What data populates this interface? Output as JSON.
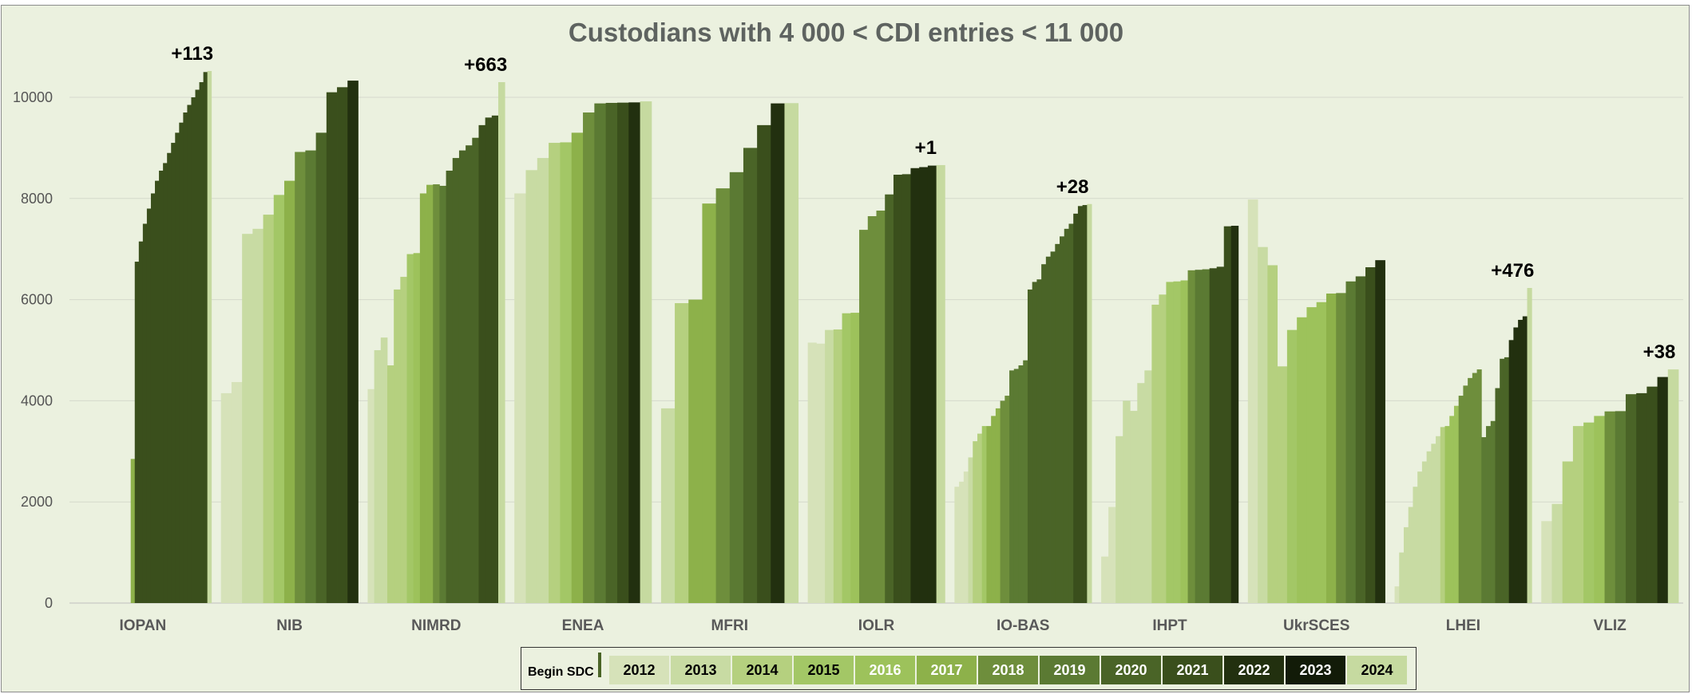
{
  "title": "Custodians with 4 000 < CDI entries < 11 000",
  "legend": {
    "title": "Begin SDC",
    "years": [
      {
        "label": "2012",
        "color": "#d6e2b9",
        "text_color": "#000000"
      },
      {
        "label": "2013",
        "color": "#c8dba3",
        "text_color": "#000000"
      },
      {
        "label": "2014",
        "color": "#b5d07f",
        "text_color": "#000000"
      },
      {
        "label": "2015",
        "color": "#a3c766",
        "text_color": "#000000"
      },
      {
        "label": "2016",
        "color": "#9dc25b",
        "text_color": "#ffffff"
      },
      {
        "label": "2017",
        "color": "#8db14a",
        "text_color": "#ffffff"
      },
      {
        "label": "2018",
        "color": "#6e8e3c",
        "text_color": "#ffffff"
      },
      {
        "label": "2019",
        "color": "#5b7a33",
        "text_color": "#ffffff"
      },
      {
        "label": "2020",
        "color": "#4a6427",
        "text_color": "#ffffff"
      },
      {
        "label": "2021",
        "color": "#3a4f1c",
        "text_color": "#ffffff"
      },
      {
        "label": "2022",
        "color": "#22300f",
        "text_color": "#ffffff"
      },
      {
        "label": "2023",
        "color": "#121b08",
        "text_color": "#ffffff"
      },
      {
        "label": "2024",
        "color": "#c6daa0",
        "text_color": "#000000"
      }
    ]
  },
  "chart_data": {
    "type": "bar",
    "title": "Custodians with 4 000 < CDI entries < 11 000",
    "xlabel": "",
    "ylabel": "",
    "ylim": [
      0,
      11000
    ],
    "yticks": [
      "0",
      "2000",
      "4000",
      "6000",
      "8000",
      "10000"
    ],
    "grid": true,
    "legend_position": "bottom",
    "categories": [
      "IOPAN",
      "NIB",
      "NIMRD",
      "ENEA",
      "MFRI",
      "IOLR",
      "IO-BAS",
      "IHPT",
      "UkrSCES",
      "LHEI",
      "VLIZ"
    ],
    "annotations": {
      "IOPAN": "+113",
      "NIMRD": "+663",
      "IOLR": "+1",
      "IO-BAS": "+28",
      "LHEI": "+476",
      "VLIZ": "+38"
    },
    "series": [
      {
        "category": "IOPAN",
        "segments": [
          {
            "year": "2017",
            "values": [
              0,
              0,
              0,
              0,
              0,
              0,
              0,
              0,
              0,
              0,
              0,
              0,
              0,
              0,
              2850
            ]
          },
          {
            "year": "2021",
            "values": [
              6750,
              7150,
              7500,
              7800,
              8100,
              8350,
              8550,
              8700,
              8900,
              9100,
              9300,
              9500,
              9700,
              9850,
              10000,
              10150,
              10300,
              10500
            ]
          },
          {
            "year": "2024",
            "values": [
              10520
            ]
          }
        ]
      },
      {
        "category": "NIB",
        "segments": [
          {
            "year": "2012",
            "values": [
              4150,
              4370
            ]
          },
          {
            "year": "2013",
            "values": [
              7300,
              7400
            ]
          },
          {
            "year": "2014",
            "values": [
              7680
            ]
          },
          {
            "year": "2015",
            "values": [
              8070
            ]
          },
          {
            "year": "2017",
            "values": [
              8350
            ]
          },
          {
            "year": "2018",
            "values": [
              8920
            ]
          },
          {
            "year": "2019",
            "values": [
              8950
            ]
          },
          {
            "year": "2020",
            "values": [
              9300
            ]
          },
          {
            "year": "2021",
            "values": [
              10100,
              10200
            ]
          },
          {
            "year": "2022",
            "values": [
              10330
            ]
          }
        ]
      },
      {
        "category": "NIMRD",
        "segments": [
          {
            "year": "2012",
            "values": [
              4230
            ]
          },
          {
            "year": "2013",
            "values": [
              5000,
              5250
            ]
          },
          {
            "year": "2014",
            "values": [
              4700,
              6200,
              6450
            ]
          },
          {
            "year": "2015",
            "values": [
              6900
            ]
          },
          {
            "year": "2016",
            "values": [
              6920
            ]
          },
          {
            "year": "2017",
            "values": [
              8100,
              8270
            ]
          },
          {
            "year": "2018",
            "values": [
              8280
            ]
          },
          {
            "year": "2019",
            "values": [
              8250
            ]
          },
          {
            "year": "2020",
            "values": [
              8550,
              8800,
              8950,
              9050,
              9200
            ]
          },
          {
            "year": "2021",
            "values": [
              9450,
              9600,
              9640
            ]
          },
          {
            "year": "2024",
            "values": [
              10300
            ]
          }
        ]
      },
      {
        "category": "ENEA",
        "segments": [
          {
            "year": "2012",
            "values": [
              8100
            ]
          },
          {
            "year": "2013",
            "values": [
              8560,
              8800
            ]
          },
          {
            "year": "2014",
            "values": [
              9100
            ]
          },
          {
            "year": "2015",
            "values": [
              9110
            ]
          },
          {
            "year": "2017",
            "values": [
              9300
            ]
          },
          {
            "year": "2018",
            "values": [
              9700
            ]
          },
          {
            "year": "2019",
            "values": [
              9880
            ]
          },
          {
            "year": "2020",
            "values": [
              9890
            ]
          },
          {
            "year": "2021",
            "values": [
              9895
            ]
          },
          {
            "year": "2022",
            "values": [
              9900
            ]
          },
          {
            "year": "2024",
            "values": [
              9920
            ]
          }
        ]
      },
      {
        "category": "MFRI",
        "segments": [
          {
            "year": "2013",
            "values": [
              3850
            ]
          },
          {
            "year": "2014",
            "values": [
              5930
            ]
          },
          {
            "year": "2017",
            "values": [
              6000,
              7900
            ]
          },
          {
            "year": "2018",
            "values": [
              8200
            ]
          },
          {
            "year": "2019",
            "values": [
              8520
            ]
          },
          {
            "year": "2020",
            "values": [
              9000
            ]
          },
          {
            "year": "2021",
            "values": [
              9450
            ]
          },
          {
            "year": "2022",
            "values": [
              9880
            ]
          },
          {
            "year": "2024",
            "values": [
              9885
            ]
          }
        ]
      },
      {
        "category": "IOLR",
        "segments": [
          {
            "year": "2012",
            "values": [
              5150,
              5130
            ]
          },
          {
            "year": "2013",
            "values": [
              5400
            ]
          },
          {
            "year": "2014",
            "values": [
              5410
            ]
          },
          {
            "year": "2015",
            "values": [
              5730
            ]
          },
          {
            "year": "2016",
            "values": [
              5740
            ]
          },
          {
            "year": "2018",
            "values": [
              7380,
              7650,
              7760
            ]
          },
          {
            "year": "2020",
            "values": [
              8080
            ]
          },
          {
            "year": "2021",
            "values": [
              8470,
              8480
            ]
          },
          {
            "year": "2022",
            "values": [
              8600,
              8620,
              8650
            ]
          },
          {
            "year": "2024",
            "values": [
              8660
            ]
          }
        ]
      },
      {
        "category": "IO-BAS",
        "segments": [
          {
            "year": "2012",
            "values": [
              2300,
              2400,
              2600
            ]
          },
          {
            "year": "2013",
            "values": [
              2880
            ]
          },
          {
            "year": "2014",
            "values": [
              3200,
              3350
            ]
          },
          {
            "year": "2015",
            "values": [
              3500
            ]
          },
          {
            "year": "2017",
            "values": [
              3500,
              3700,
              3850
            ]
          },
          {
            "year": "2018",
            "values": [
              4000,
              4100
            ]
          },
          {
            "year": "2019",
            "values": [
              4600,
              4630,
              4700,
              4800
            ]
          },
          {
            "year": "2020",
            "values": [
              6200,
              6350,
              6400,
              6700,
              6850,
              6950,
              7100,
              7250,
              7400,
              7500
            ]
          },
          {
            "year": "2021",
            "values": [
              7700,
              7850,
              7870
            ]
          },
          {
            "year": "2024",
            "values": [
              7890
            ]
          }
        ]
      },
      {
        "category": "IHPT",
        "segments": [
          {
            "year": "2012",
            "values": [
              920,
              1900
            ]
          },
          {
            "year": "2013",
            "values": [
              3300,
              4000,
              3800,
              4350,
              4600
            ]
          },
          {
            "year": "2014",
            "values": [
              5900,
              6100
            ]
          },
          {
            "year": "2015",
            "values": [
              6350,
              6360
            ]
          },
          {
            "year": "2016",
            "values": [
              6380
            ]
          },
          {
            "year": "2018",
            "values": [
              6580
            ]
          },
          {
            "year": "2019",
            "values": [
              6590,
              6600
            ]
          },
          {
            "year": "2021",
            "values": [
              6620,
              6650,
              7450
            ]
          },
          {
            "year": "2022",
            "values": [
              7460
            ]
          }
        ]
      },
      {
        "category": "UkrSCES",
        "segments": [
          {
            "year": "2012",
            "values": [
              7980
            ]
          },
          {
            "year": "2013",
            "values": [
              7040
            ]
          },
          {
            "year": "2014",
            "values": [
              6680,
              4680
            ]
          },
          {
            "year": "2015",
            "values": [
              5400
            ]
          },
          {
            "year": "2016",
            "values": [
              5650,
              5850,
              5950
            ]
          },
          {
            "year": "2017",
            "values": [
              6120
            ]
          },
          {
            "year": "2018",
            "values": [
              6130
            ]
          },
          {
            "year": "2019",
            "values": [
              6360
            ]
          },
          {
            "year": "2020",
            "values": [
              6460
            ]
          },
          {
            "year": "2021",
            "values": [
              6640
            ]
          },
          {
            "year": "2022",
            "values": [
              6780
            ]
          }
        ]
      },
      {
        "category": "LHEI",
        "segments": [
          {
            "year": "2012",
            "values": [
              330
            ]
          },
          {
            "year": "2013",
            "values": [
              1000,
              1500,
              1900,
              2300,
              2600,
              2800,
              3000,
              3150,
              3300
            ]
          },
          {
            "year": "2014",
            "values": [
              3480
            ]
          },
          {
            "year": "2016",
            "values": [
              3500,
              3700,
              3900
            ]
          },
          {
            "year": "2018",
            "values": [
              4100,
              4300,
              4450,
              4550,
              4620
            ]
          },
          {
            "year": "2019",
            "values": [
              3280,
              3500,
              3600
            ]
          },
          {
            "year": "2020",
            "values": [
              4250,
              4830,
              4860
            ]
          },
          {
            "year": "2022",
            "values": [
              5200,
              5450,
              5600,
              5670
            ]
          },
          {
            "year": "2024",
            "values": [
              6230
            ]
          }
        ]
      },
      {
        "category": "VLIZ",
        "segments": [
          {
            "year": "2012",
            "values": [
              1620
            ]
          },
          {
            "year": "2013",
            "values": [
              1960
            ]
          },
          {
            "year": "2014",
            "values": [
              2800,
              3500
            ]
          },
          {
            "year": "2015",
            "values": [
              3570
            ]
          },
          {
            "year": "2016",
            "values": [
              3700
            ]
          },
          {
            "year": "2018",
            "values": [
              3790
            ]
          },
          {
            "year": "2019",
            "values": [
              3795
            ]
          },
          {
            "year": "2020",
            "values": [
              4130
            ]
          },
          {
            "year": "2021",
            "values": [
              4150,
              4280
            ]
          },
          {
            "year": "2022",
            "values": [
              4470
            ]
          },
          {
            "year": "2024",
            "values": [
              4620
            ]
          }
        ]
      }
    ]
  }
}
